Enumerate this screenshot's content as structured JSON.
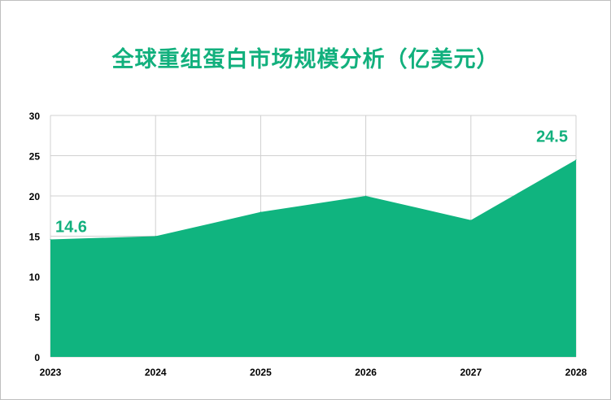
{
  "chart_data": {
    "type": "area",
    "title": "全球重组蛋白市场规模分析（亿美元）",
    "categories": [
      "2023",
      "2024",
      "2025",
      "2026",
      "2027",
      "2028"
    ],
    "values": [
      14.6,
      15,
      18,
      20,
      17,
      24.5
    ],
    "data_labels": [
      {
        "index": 0,
        "text": "14.6"
      },
      {
        "index": 5,
        "text": "24.5"
      }
    ],
    "ylim": [
      0,
      30
    ],
    "yticks": [
      0,
      5,
      10,
      15,
      20,
      25,
      30
    ],
    "grid": true,
    "legend": "none",
    "xlabel": "",
    "ylabel": "",
    "colors": {
      "area": "#10b47f",
      "label": "#12b07d",
      "grid": "#d0d0d0"
    }
  }
}
